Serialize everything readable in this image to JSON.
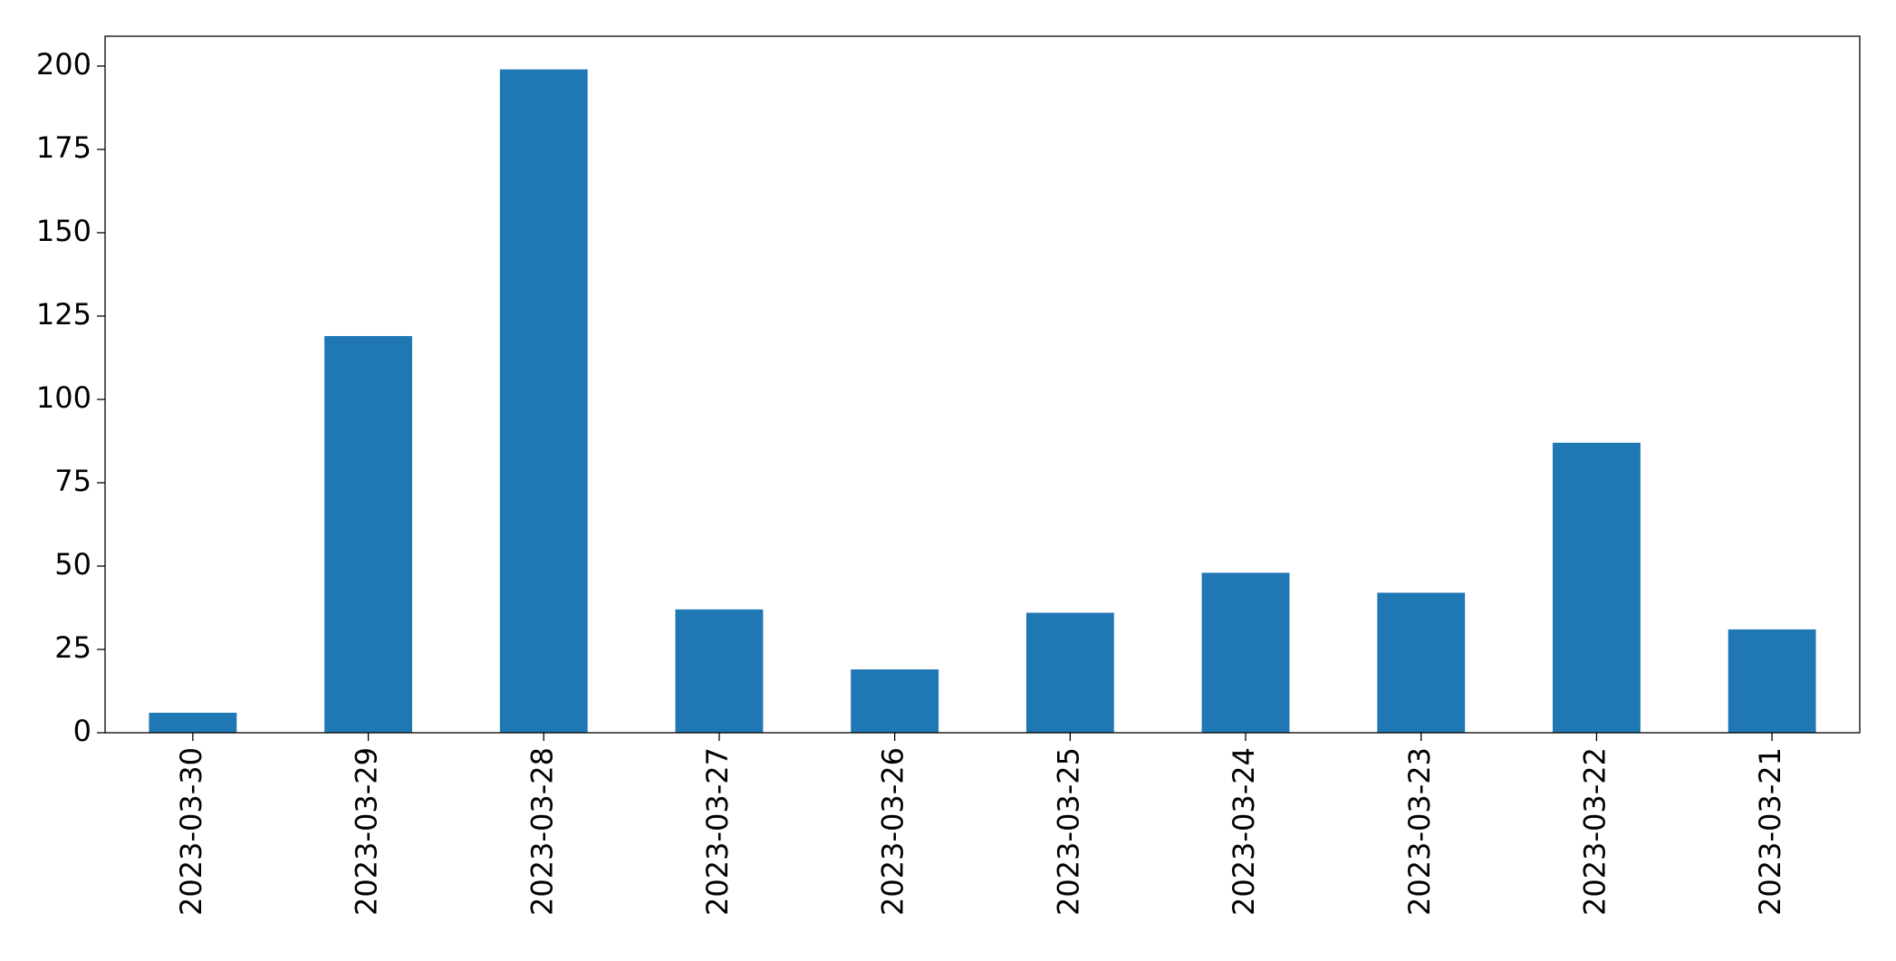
{
  "chart_data": {
    "type": "bar",
    "categories": [
      "2023-03-30",
      "2023-03-29",
      "2023-03-28",
      "2023-03-27",
      "2023-03-26",
      "2023-03-25",
      "2023-03-24",
      "2023-03-23",
      "2023-03-22",
      "2023-03-21"
    ],
    "values": [
      6,
      119,
      199,
      37,
      19,
      36,
      48,
      42,
      87,
      31
    ],
    "color": "#1f77b4",
    "ylim": [
      0,
      208.95
    ],
    "yticks": [
      0,
      25,
      50,
      75,
      100,
      125,
      150,
      175,
      200
    ],
    "grid": false
  }
}
